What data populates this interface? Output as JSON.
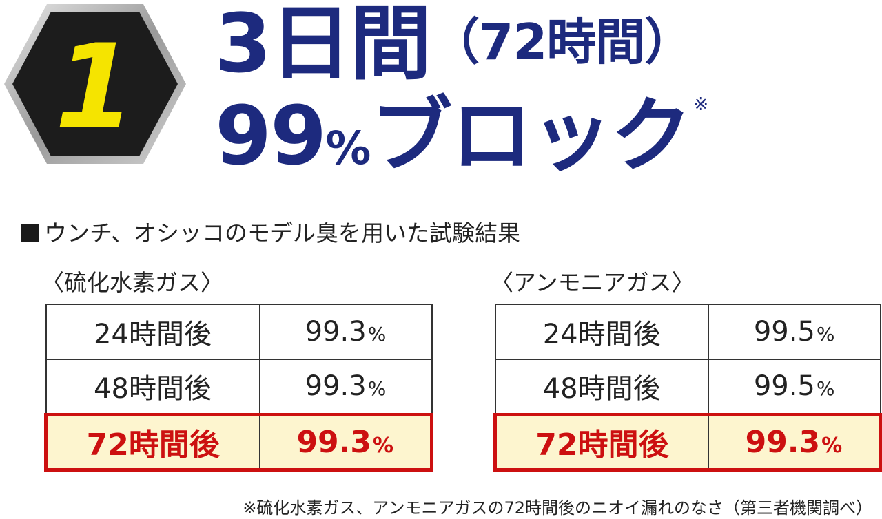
{
  "badge": {
    "number": "1"
  },
  "headline": {
    "duration": "3日間",
    "duration_hours": "（72時間）",
    "block_number": "99",
    "block_unit": "%",
    "block_text": "ブロック",
    "note_mark": "※"
  },
  "section_title": "ウンチ、オシッコのモデル臭を用いた試験結果",
  "tables": [
    {
      "title": "〈硫化水素ガス〉",
      "rows": [
        {
          "time": "24時間後",
          "value": "99.3",
          "unit": "%"
        },
        {
          "time": "48時間後",
          "value": "99.3",
          "unit": "%"
        },
        {
          "time": "72時間後",
          "value": "99.3",
          "unit": "%"
        }
      ]
    },
    {
      "title": "〈アンモニアガス〉",
      "rows": [
        {
          "time": "24時間後",
          "value": "99.5",
          "unit": "%"
        },
        {
          "time": "48時間後",
          "value": "99.5",
          "unit": "%"
        },
        {
          "time": "72時間後",
          "value": "99.3",
          "unit": "%"
        }
      ]
    }
  ],
  "footnote": "※硫化水素ガス、アンモニアガスの72時間後のニオイ漏れのなさ（第三者機関調べ）",
  "colors": {
    "headline": "#1d2a7e",
    "highlight_border": "#cc1010",
    "highlight_background": "#fdf5cf",
    "badge_number": "#f5e400",
    "badge_fill": "#1c1c1c",
    "badge_border": "#b8b8b8"
  }
}
